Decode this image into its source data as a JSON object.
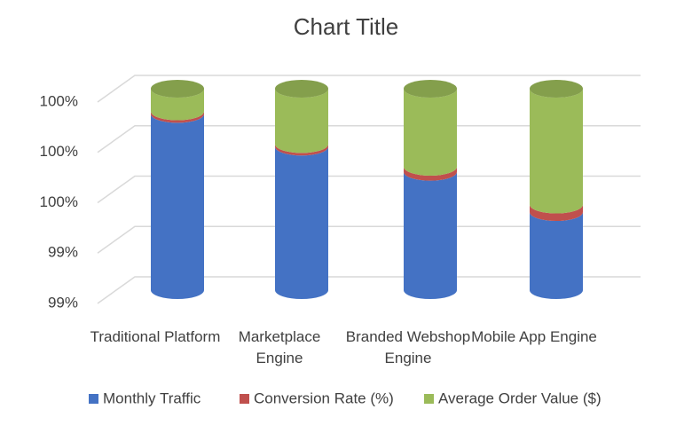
{
  "chart_data": {
    "type": "bar3d-cylinder",
    "stacked": true,
    "title": "Chart Title",
    "categories": [
      "Traditional Platform",
      "Marketplace Engine",
      "Branded Webshop Engine",
      "Mobile App Engine"
    ],
    "series": [
      {
        "name": "Monthly Traffic",
        "color": "#4472c4",
        "values": [
          99.9,
          99.77,
          99.67,
          99.51
        ]
      },
      {
        "name": "Conversion Rate (%)",
        "color": "#c0504d",
        "values": [
          0.01,
          0.01,
          0.02,
          0.03
        ]
      },
      {
        "name": "Average Order Value ($)",
        "color": "#9bbb59",
        "values": [
          0.09,
          0.22,
          0.31,
          0.46
        ]
      }
    ],
    "ylim": [
      99.2,
      100.0
    ],
    "yticks": [
      {
        "value": 99.2,
        "label": "99%"
      },
      {
        "value": 99.4,
        "label": "99%"
      },
      {
        "value": 99.6,
        "label": "100%"
      },
      {
        "value": 99.8,
        "label": "100%"
      },
      {
        "value": 100.0,
        "label": "100%"
      }
    ],
    "grid": true,
    "legend": "bottom"
  }
}
